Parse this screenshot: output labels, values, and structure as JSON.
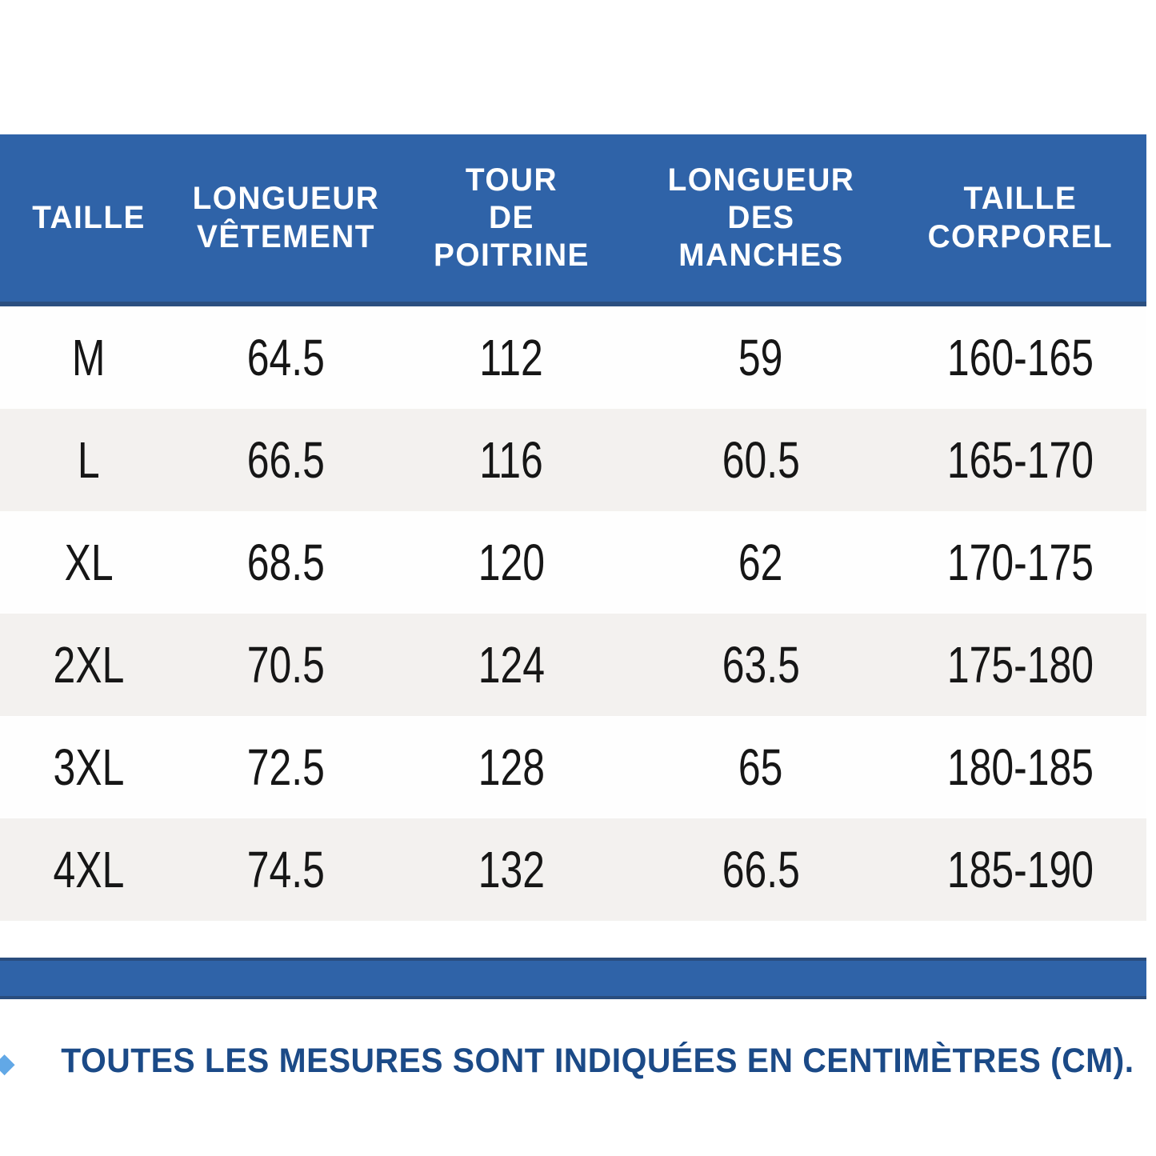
{
  "chart_data": {
    "type": "table",
    "columns": [
      "TAILLE",
      "LONGUEUR\nVÊTEMENT",
      "TOUR\nDE\nPOITRINE",
      "LONGUEUR\nDES\nMANCHES",
      "TAILLE\nCORPOREL"
    ],
    "rows": [
      [
        "M",
        "64.5",
        "112",
        "59",
        "160-165"
      ],
      [
        "L",
        "66.5",
        "116",
        "60.5",
        "165-170"
      ],
      [
        "XL",
        "68.5",
        "120",
        "62",
        "170-175"
      ],
      [
        "2XL",
        "70.5",
        "124",
        "63.5",
        "175-180"
      ],
      [
        "3XL",
        "72.5",
        "128",
        "65",
        "180-185"
      ],
      [
        "4XL",
        "74.5",
        "132",
        "66.5",
        "185-190"
      ]
    ],
    "units": "cm",
    "layout": "alternating row shading, blue header band, blue divider bar below table"
  },
  "note": {
    "bullet_icon": "diamond-icon",
    "text": "TOUTES LES MESURES SONT INDIQUÉES EN CENTIMÈTRES (CM)."
  },
  "colors": {
    "header_bg": "#2f63a8",
    "header_border": "#2b4f80",
    "header_text": "#ffffff",
    "row_white": "#fefefe",
    "row_gray": "#f3f1ef",
    "body_text": "#161616",
    "note_text": "#1b4a87",
    "diamond": "#62a8e6"
  }
}
